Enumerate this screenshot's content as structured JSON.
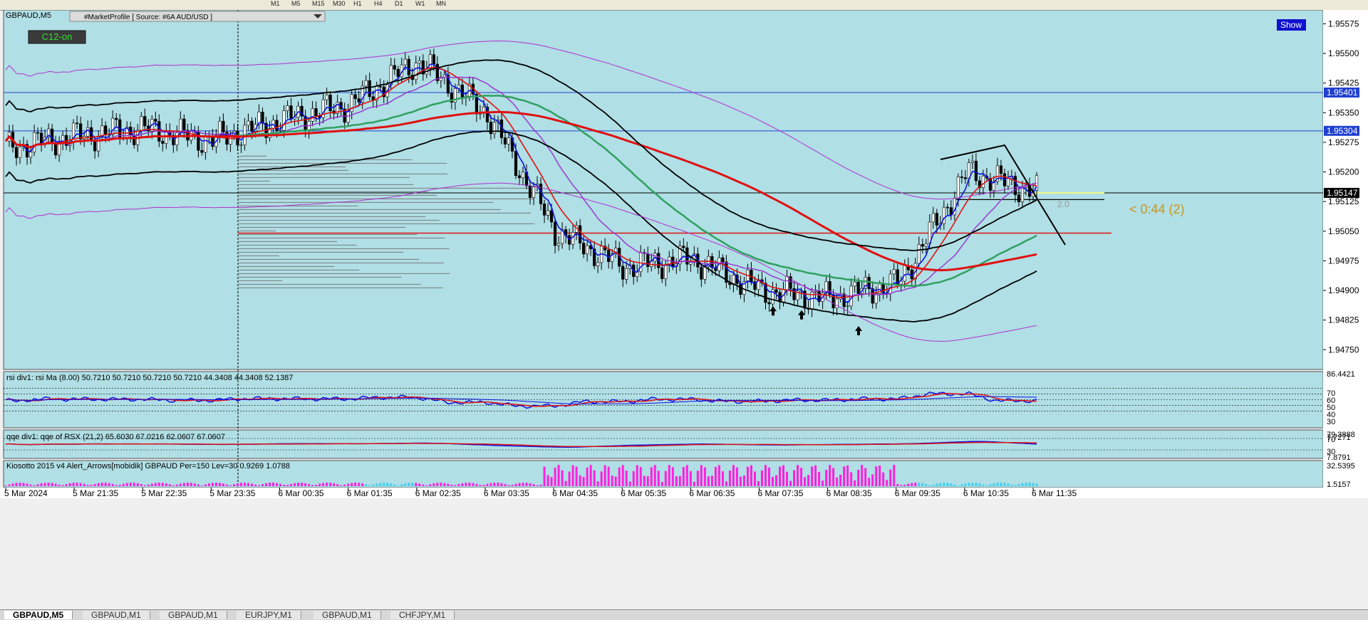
{
  "toolbar": {
    "timeframes": [
      "M1",
      "M5",
      "M15",
      "M30",
      "H1",
      "H4",
      "D1",
      "W1",
      "MN"
    ]
  },
  "main_chart": {
    "symbol_label": "GBPAUD,M5",
    "indicator_label": "#MarketProfile [ Source: #6A AUD/USD ]",
    "c12_button": "C12-on",
    "show_button": "Show",
    "countdown": "< 0:44 (2)",
    "small_label": "2.0",
    "price_labels": [
      "1.95575",
      "1.95500",
      "1.95425",
      "1.95350",
      "1.95275",
      "1.95200",
      "1.95125",
      "1.95050",
      "1.94975",
      "1.94900",
      "1.94825",
      "1.94750"
    ],
    "hline_labels": [
      "1.95401",
      "1.95304",
      "1.95147"
    ],
    "colors": {
      "background": "#b0dfe5",
      "hline": "#2040d0",
      "current": "#000000"
    }
  },
  "rsi_panel": {
    "title": "rsi div1: rsi Ma (8.00) 50.7210 50.7210 50.7210 50.7210 44.3408 44.3408 52.1387",
    "scale_labels": [
      "86.4421",
      "70",
      "60",
      "50",
      "40",
      "30",
      "7.7271"
    ]
  },
  "qqe_panel": {
    "title": "qqe div1: qqe of RSX (21,2) 65.6030 67.0216 62.0607 67.0607",
    "scale_labels": [
      "79.3888",
      "70",
      "30",
      "7.8791"
    ]
  },
  "kio_panel": {
    "title": "Kiosotto 2015 v4 Alert_Arrows[mobidik] GBPAUD Per=150 Lev=30 0.9269 1.0788",
    "scale_labels": [
      "32.5395",
      "1.5157"
    ]
  },
  "time_labels": [
    "5 Mar 2024",
    "5 Mar 21:35",
    "5 Mar 22:35",
    "5 Mar 23:35",
    "6 Mar 00:35",
    "6 Mar 01:35",
    "6 Mar 02:35",
    "6 Mar 03:35",
    "6 Mar 04:35",
    "6 Mar 05:35",
    "6 Mar 06:35",
    "6 Mar 07:35",
    "6 Mar 08:35",
    "6 Mar 09:35",
    "6 Mar 10:35",
    "6 Mar 11:35"
  ],
  "tabs": [
    "GBPAUD,M5",
    "GBPAUD,M1",
    "GBPAUD,M1",
    "EURJPY,M1",
    "GBPAUD,M1",
    "CHFJPY,M1"
  ],
  "chart_data": {
    "type": "line",
    "title": "GBPAUD,M5",
    "x": [
      "5 Mar 2024",
      "5 Mar 21:35",
      "5 Mar 22:35",
      "5 Mar 23:35",
      "6 Mar 00:35",
      "6 Mar 01:35",
      "6 Mar 02:35",
      "6 Mar 03:35",
      "6 Mar 04:35",
      "6 Mar 05:35",
      "6 Mar 06:35",
      "6 Mar 07:35",
      "6 Mar 08:35",
      "6 Mar 09:35",
      "6 Mar 10:35",
      "6 Mar 11:35"
    ],
    "series": [
      {
        "name": "GBPAUD,M5",
        "values": [
          1.9526,
          1.9529,
          1.9531,
          1.9528,
          1.9533,
          1.9537,
          1.9548,
          1.9535,
          1.9505,
          1.9496,
          1.9498,
          1.949,
          1.9488,
          1.9492,
          1.952,
          1.9515
        ]
      }
    ],
    "ylim": [
      1.947,
      1.9561
    ],
    "horizontal_levels": [
      1.95401,
      1.95304,
      1.95147
    ]
  }
}
